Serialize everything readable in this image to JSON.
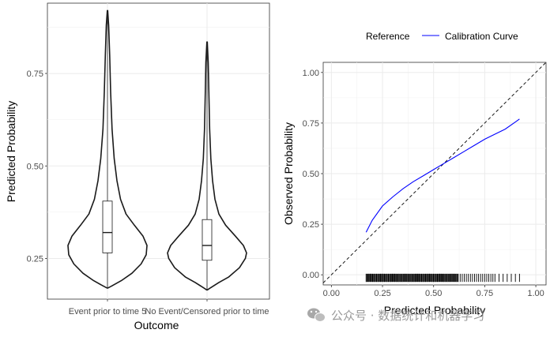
{
  "watermark": {
    "text": "公众号 · 数据统计和机器学习",
    "icon": "wechat-icon"
  },
  "chart_data": [
    {
      "type": "violin",
      "xlabel": "Outcome",
      "ylabel": "Predicted Probability",
      "ylim": [
        0.14,
        0.94
      ],
      "yticks": [
        0.25,
        0.5,
        0.75
      ],
      "ytick_labels": [
        "0.25",
        "0.50",
        "0.75"
      ],
      "grid": true,
      "categories": [
        "Event prior to time 5",
        "No Event/Censored prior to time"
      ],
      "groups": [
        {
          "category": "Event prior to time 5",
          "min": 0.17,
          "max": 0.92,
          "boxplot": {
            "q1": 0.265,
            "median": 0.32,
            "q3": 0.405
          },
          "density_profile": [
            [
              0.17,
              0.01
            ],
            [
              0.175,
              0.1
            ],
            [
              0.19,
              0.35
            ],
            [
              0.21,
              0.62
            ],
            [
              0.235,
              0.85
            ],
            [
              0.26,
              0.98
            ],
            [
              0.285,
              1.0
            ],
            [
              0.31,
              0.9
            ],
            [
              0.34,
              0.68
            ],
            [
              0.37,
              0.47
            ],
            [
              0.41,
              0.33
            ],
            [
              0.46,
              0.24
            ],
            [
              0.52,
              0.17
            ],
            [
              0.6,
              0.115
            ],
            [
              0.7,
              0.08
            ],
            [
              0.8,
              0.055
            ],
            [
              0.88,
              0.03
            ],
            [
              0.92,
              0.005
            ]
          ]
        },
        {
          "category": "No Event/Censored prior to time",
          "min": 0.165,
          "max": 0.835,
          "boxplot": {
            "q1": 0.245,
            "median": 0.285,
            "q3": 0.355
          },
          "density_profile": [
            [
              0.165,
              0.01
            ],
            [
              0.17,
              0.08
            ],
            [
              0.185,
              0.3
            ],
            [
              0.2,
              0.55
            ],
            [
              0.225,
              0.82
            ],
            [
              0.25,
              0.97
            ],
            [
              0.265,
              1.0
            ],
            [
              0.285,
              0.92
            ],
            [
              0.31,
              0.72
            ],
            [
              0.34,
              0.47
            ],
            [
              0.37,
              0.3
            ],
            [
              0.41,
              0.2
            ],
            [
              0.46,
              0.14
            ],
            [
              0.52,
              0.095
            ],
            [
              0.6,
              0.065
            ],
            [
              0.7,
              0.045
            ],
            [
              0.78,
              0.03
            ],
            [
              0.835,
              0.005
            ]
          ]
        }
      ]
    },
    {
      "type": "line",
      "xlabel": "Predicted Probability",
      "ylabel": "Observed Probability",
      "xlim": [
        -0.04,
        1.05
      ],
      "ylim": [
        -0.05,
        1.05
      ],
      "xticks": [
        0,
        0.25,
        0.5,
        0.75,
        1.0
      ],
      "xtick_labels": [
        "0.00",
        "0.25",
        "0.50",
        "0.75",
        "1.00"
      ],
      "yticks": [
        0,
        0.25,
        0.5,
        0.75,
        1.0
      ],
      "ytick_labels": [
        "0.00",
        "0.25",
        "0.50",
        "0.75",
        "1.00"
      ],
      "grid": true,
      "legend": {
        "position": "top",
        "entries": [
          "Reference",
          "Calibration Curve"
        ]
      },
      "series": [
        {
          "name": "Reference",
          "style": "dashed",
          "color": "#000000",
          "x": [
            -0.04,
            1.05
          ],
          "y": [
            -0.04,
            1.05
          ]
        },
        {
          "name": "Calibration Curve",
          "style": "solid",
          "color": "#0000ff",
          "x": [
            0.17,
            0.2,
            0.25,
            0.3,
            0.35,
            0.4,
            0.45,
            0.5,
            0.55,
            0.6,
            0.65,
            0.7,
            0.75,
            0.8,
            0.85,
            0.9,
            0.92
          ],
          "y": [
            0.21,
            0.27,
            0.34,
            0.385,
            0.425,
            0.46,
            0.49,
            0.52,
            0.55,
            0.58,
            0.61,
            0.64,
            0.67,
            0.695,
            0.72,
            0.755,
            0.77
          ]
        }
      ],
      "rug": {
        "color": "#000000",
        "x": [
          0.17,
          0.18,
          0.19,
          0.2,
          0.21,
          0.22,
          0.23,
          0.24,
          0.25,
          0.26,
          0.27,
          0.28,
          0.29,
          0.3,
          0.31,
          0.32,
          0.33,
          0.34,
          0.35,
          0.36,
          0.37,
          0.38,
          0.39,
          0.4,
          0.41,
          0.42,
          0.43,
          0.44,
          0.45,
          0.46,
          0.47,
          0.48,
          0.49,
          0.5,
          0.51,
          0.52,
          0.53,
          0.54,
          0.55,
          0.56,
          0.57,
          0.58,
          0.59,
          0.6,
          0.61,
          0.62,
          0.63,
          0.64,
          0.65,
          0.66,
          0.67,
          0.68,
          0.69,
          0.7,
          0.71,
          0.72,
          0.73,
          0.74,
          0.75,
          0.76,
          0.77,
          0.78,
          0.79,
          0.8,
          0.82,
          0.84,
          0.86,
          0.88,
          0.9,
          0.92
        ]
      }
    }
  ]
}
